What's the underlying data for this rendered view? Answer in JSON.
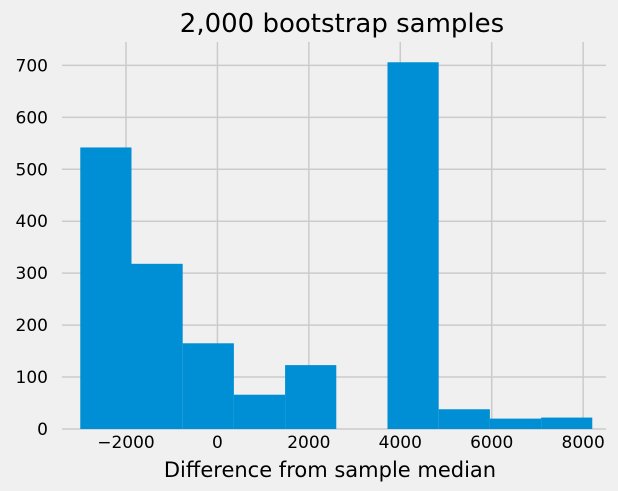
{
  "chart_data": {
    "type": "bar",
    "title": "2,000 bootstrap samples",
    "xlabel": "Difference from sample median",
    "ylabel": "",
    "xlim": [
      -3400,
      8500
    ],
    "ylim": [
      0,
      745
    ],
    "grid": true,
    "bar_color": "#008fd5",
    "background_color": "#f0f0f0",
    "bins": [
      {
        "x0": -3000,
        "x1": -1880,
        "count": 542
      },
      {
        "x0": -1880,
        "x1": -760,
        "count": 318
      },
      {
        "x0": -760,
        "x1": 360,
        "count": 165
      },
      {
        "x0": 360,
        "x1": 1480,
        "count": 66
      },
      {
        "x0": 1480,
        "x1": 2600,
        "count": 123
      },
      {
        "x0": 2600,
        "x1": 3720,
        "count": 0
      },
      {
        "x0": 3720,
        "x1": 4840,
        "count": 706
      },
      {
        "x0": 4840,
        "x1": 5960,
        "count": 38
      },
      {
        "x0": 5960,
        "x1": 7080,
        "count": 20
      },
      {
        "x0": 7080,
        "x1": 8200,
        "count": 22
      }
    ],
    "x_ticks": [
      -2000,
      0,
      2000,
      4000,
      6000,
      8000
    ],
    "x_tick_labels": [
      "−2000",
      "0",
      "2000",
      "4000",
      "6000",
      "8000"
    ],
    "y_ticks": [
      0,
      100,
      200,
      300,
      400,
      500,
      600,
      700
    ],
    "y_tick_labels": [
      "0",
      "100",
      "200",
      "300",
      "400",
      "500",
      "600",
      "700"
    ]
  }
}
